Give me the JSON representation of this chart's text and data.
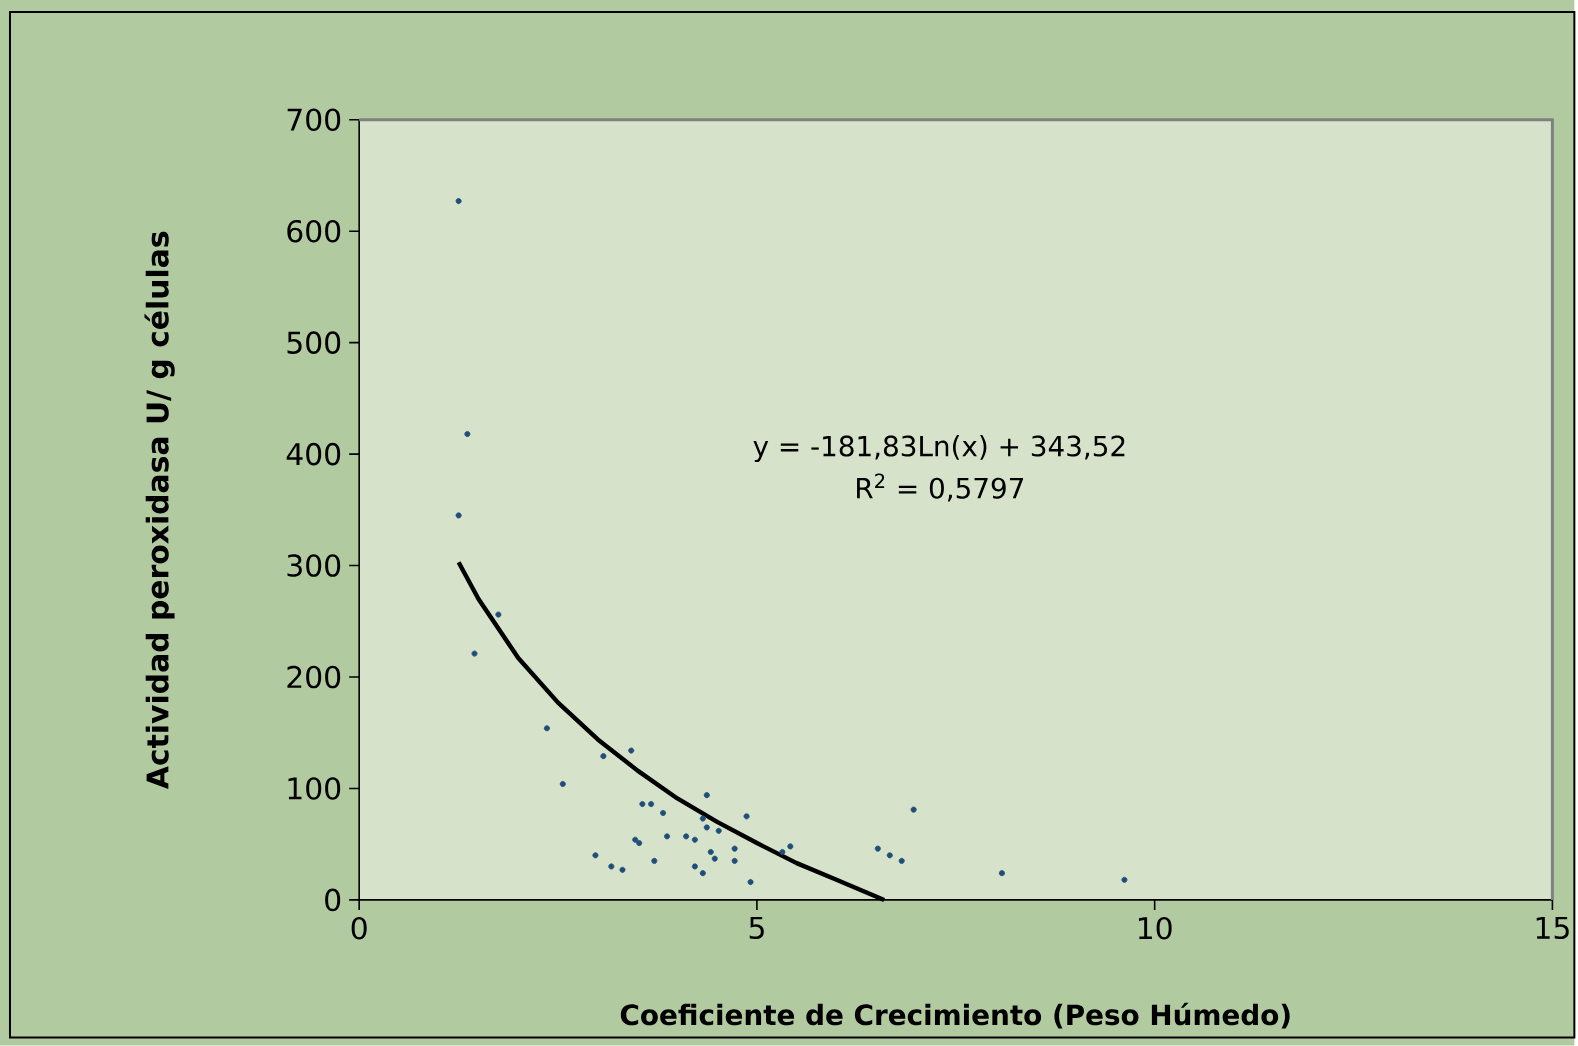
{
  "chart_data": {
    "type": "scatter",
    "xlabel": "Coeficiente de Crecimiento (Peso Húmedo)",
    "ylabel": "Actividad peroxidasa  U/ g células",
    "xlim": [
      0,
      15
    ],
    "xticks": [
      0,
      5,
      10,
      15
    ],
    "ylim": [
      0,
      700
    ],
    "yticks": [
      0,
      100,
      200,
      300,
      400,
      500,
      600,
      700
    ],
    "grid": false,
    "annotations": [
      "y = -181,83Ln(x) + 343,52",
      "R$^{2}$ = 0,5797"
    ],
    "series": [
      {
        "color": "#1f4e79",
        "marker": "circle",
        "x": [
          1.25,
          1.36,
          1.25,
          1.75,
          1.45,
          2.36,
          2.56,
          3.07,
          3.42,
          2.97,
          3.17,
          3.31,
          3.56,
          3.67,
          3.82,
          3.47,
          3.52,
          3.71,
          3.87,
          4.11,
          4.22,
          4.37,
          4.32,
          4.37,
          4.52,
          4.42,
          4.47,
          4.22,
          4.32,
          4.72,
          4.72,
          4.87,
          4.92,
          5.42,
          5.32,
          6.52,
          6.67,
          6.82,
          6.97,
          8.08,
          9.62
        ],
        "values": [
          627,
          418,
          345,
          256,
          221,
          154,
          104,
          129,
          134,
          40,
          30,
          27,
          86,
          86,
          78,
          54,
          51,
          35,
          57,
          57,
          54,
          94,
          73,
          65,
          62,
          43,
          37,
          30,
          24,
          46,
          35,
          75,
          16,
          48,
          43,
          46,
          40,
          35,
          81,
          24,
          18
        ]
      },
      {
        "type": "line",
        "color": "#000000",
        "line_style": "solid",
        "marker": "none",
        "x": [
          1.25,
          1.5,
          2,
          2.5,
          3,
          3.5,
          4,
          4.5,
          5,
          5.5,
          6,
          6.6
        ],
        "values": [
          303,
          270,
          217,
          177,
          144,
          116,
          91,
          70,
          51,
          33,
          18,
          0
        ]
      }
    ]
  }
}
